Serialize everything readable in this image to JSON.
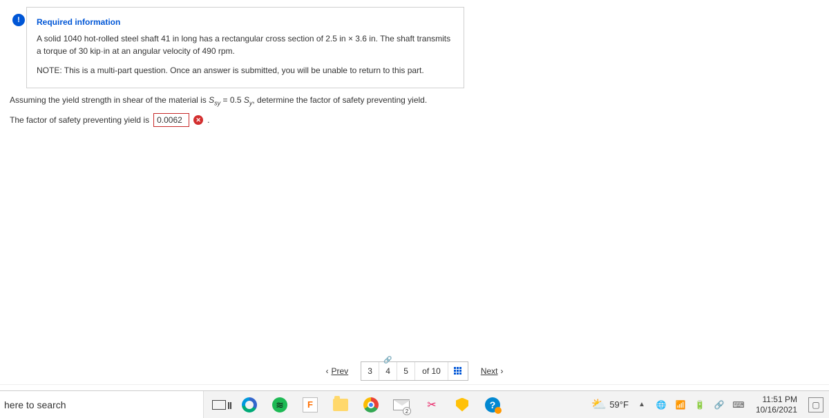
{
  "info_icon": "!",
  "info_box": {
    "title": "Required information",
    "body": "A solid 1040 hot-rolled steel shaft 41 in long has a rectangular cross section of 2.5 in × 3.6 in. The shaft transmits a torque of 30 kip·in at an angular velocity of 490 rpm.",
    "note": "NOTE: This is a multi-part question. Once an answer is submitted, you will be unable to return to this part."
  },
  "question": {
    "pre": "Assuming the yield strength in shear of the material is ",
    "ssy": "S",
    "ssy_sub": "sy",
    "eq": " = 0.5 ",
    "sy": "S",
    "sy_sub": "y",
    "post": ", determine the factor of safety preventing yield."
  },
  "answer": {
    "label": "The factor of safety preventing yield is",
    "value": "0.0062",
    "period": "."
  },
  "pager": {
    "prev": "Prev",
    "pages": [
      "3",
      "4",
      "5"
    ],
    "of_label": "of 10",
    "next": "Next"
  },
  "taskbar": {
    "search_placeholder": "here to search",
    "mail_badge": "2",
    "weather": {
      "temp": "59°F"
    },
    "clock": {
      "time": "11:51 PM",
      "date": "10/16/2021"
    }
  }
}
